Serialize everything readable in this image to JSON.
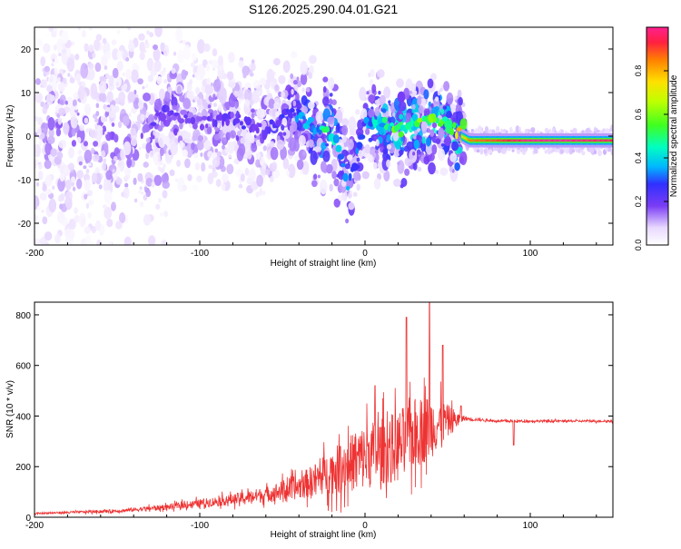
{
  "figure": {
    "title": "S126.2025.290.04.01.G21"
  },
  "chart_data": [
    {
      "type": "heatmap",
      "xlabel": "Height of straight line (km)",
      "ylabel": "Frequency (Hz)",
      "xlim": [
        -200,
        150
      ],
      "ylim": [
        -25,
        25
      ],
      "xticks": [
        "-200",
        "-100",
        "0",
        "100"
      ],
      "xtick_values": [
        -200,
        -100,
        0,
        100
      ],
      "yticks": [
        "20",
        "10",
        "0",
        "-10",
        "-20"
      ],
      "ytick_values": [
        20,
        10,
        0,
        -10,
        -20
      ],
      "colorbar": {
        "label": "Normalized spectral amplitude",
        "range": [
          0,
          1
        ],
        "ticks": [
          "0.0",
          "0.2",
          "0.4",
          "0.6",
          "0.8"
        ],
        "tick_values": [
          0,
          0.2,
          0.4,
          0.6,
          0.8
        ]
      },
      "ridge": {
        "x": [
          -135,
          -120,
          -100,
          -80,
          -60,
          -45,
          -30,
          -20,
          -15,
          -10,
          0,
          10,
          20,
          28,
          35,
          45,
          52,
          58,
          63,
          80,
          100,
          120,
          150
        ],
        "y": [
          0,
          6,
          3,
          4,
          1,
          6,
          2,
          0,
          -3,
          -12,
          3,
          3,
          1,
          3.5,
          3.5,
          3.5,
          2,
          0,
          -1,
          -1,
          -1,
          -1,
          -1
        ],
        "amplitude": [
          0.15,
          0.2,
          0.15,
          0.2,
          0.2,
          0.25,
          0.35,
          0.45,
          0.3,
          0.3,
          0.3,
          0.4,
          0.5,
          0.45,
          0.5,
          0.45,
          0.45,
          0.7,
          0.85,
          0.9,
          1.0,
          1.0,
          0.95
        ]
      }
    },
    {
      "type": "line",
      "xlabel": "Height of straight line (km)",
      "ylabel": "SNR (10 * v/v)",
      "xlim": [
        -200,
        150
      ],
      "ylim": [
        0,
        850
      ],
      "xticks": [
        "-200",
        "-100",
        "0",
        "100"
      ],
      "xtick_values": [
        -200,
        -100,
        0,
        100
      ],
      "yticks": [
        "0",
        "200",
        "400",
        "600",
        "800"
      ],
      "ytick_values": [
        0,
        200,
        400,
        600,
        800
      ],
      "series": [
        {
          "color": "#ee3333",
          "envelope_x": [
            -200,
            -150,
            -120,
            -100,
            -80,
            -60,
            -40,
            -30,
            -20,
            -10,
            0,
            10,
            20,
            30,
            40,
            50,
            60,
            70,
            80,
            100,
            120,
            150
          ],
          "envelope_mean": [
            15,
            25,
            40,
            55,
            70,
            90,
            120,
            150,
            180,
            210,
            240,
            260,
            280,
            330,
            360,
            380,
            390,
            385,
            380,
            380,
            380,
            380
          ],
          "envelope_spread": [
            5,
            12,
            20,
            30,
            40,
            55,
            90,
            120,
            160,
            200,
            240,
            240,
            260,
            260,
            230,
            120,
            15,
            10,
            8,
            8,
            8,
            8
          ],
          "peaks": [
            {
              "x": -15,
              "y": 280
            },
            {
              "x": 6,
              "y": 520
            },
            {
              "x": 25,
              "y": 790
            },
            {
              "x": 39,
              "y": 850
            },
            {
              "x": 47,
              "y": 680
            },
            {
              "x": 58,
              "y": 440
            },
            {
              "x": 90,
              "y": 285
            }
          ]
        }
      ]
    }
  ]
}
